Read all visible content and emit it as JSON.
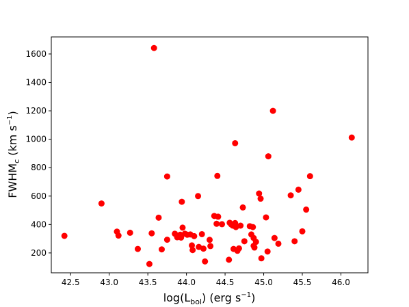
{
  "chart_data": {
    "type": "scatter",
    "title": "",
    "xlabel": {
      "main": "log(L",
      "subscript": "bol",
      "rest": ") (erg s",
      "superscript": "−1",
      "close": ")"
    },
    "ylabel": {
      "main": "FWHM",
      "subscript": "c",
      "rest": " (km s",
      "superscript": "−1",
      "close": ")"
    },
    "xlim": [
      42.25,
      46.35
    ],
    "ylim": [
      60,
      1720
    ],
    "xticks": [
      42.5,
      43.0,
      43.5,
      44.0,
      44.5,
      45.0,
      45.5,
      46.0
    ],
    "xtick_labels": [
      "42.5",
      "43.0",
      "43.5",
      "44.0",
      "44.5",
      "45.0",
      "45.5",
      "46.0"
    ],
    "yticks": [
      200,
      400,
      600,
      800,
      1000,
      1200,
      1400,
      1600
    ],
    "ytick_labels": [
      "200",
      "400",
      "600",
      "800",
      "1000",
      "1200",
      "1400",
      "1600"
    ],
    "grid": false,
    "marker_color": "#ff0000",
    "points": [
      [
        42.42,
        320
      ],
      [
        42.9,
        548
      ],
      [
        43.1,
        350
      ],
      [
        43.12,
        322
      ],
      [
        43.27,
        342
      ],
      [
        43.37,
        228
      ],
      [
        43.52,
        122
      ],
      [
        43.55,
        338
      ],
      [
        43.58,
        1642
      ],
      [
        43.64,
        448
      ],
      [
        43.68,
        225
      ],
      [
        43.75,
        738
      ],
      [
        43.75,
        293
      ],
      [
        43.85,
        335
      ],
      [
        43.88,
        310
      ],
      [
        43.92,
        328
      ],
      [
        43.93,
        308
      ],
      [
        43.94,
        560
      ],
      [
        43.95,
        378
      ],
      [
        43.98,
        335
      ],
      [
        44.01,
        328
      ],
      [
        44.05,
        330
      ],
      [
        44.07,
        253
      ],
      [
        44.08,
        220
      ],
      [
        44.1,
        318
      ],
      [
        44.15,
        600
      ],
      [
        44.16,
        242
      ],
      [
        44.2,
        332
      ],
      [
        44.22,
        230
      ],
      [
        44.24,
        140
      ],
      [
        44.3,
        292
      ],
      [
        44.31,
        248
      ],
      [
        44.36,
        460
      ],
      [
        44.39,
        405
      ],
      [
        44.4,
        742
      ],
      [
        44.41,
        455
      ],
      [
        44.46,
        402
      ],
      [
        44.55,
        152
      ],
      [
        44.56,
        412
      ],
      [
        44.58,
        400
      ],
      [
        44.6,
        392
      ],
      [
        44.61,
        228
      ],
      [
        44.63,
        410
      ],
      [
        44.63,
        972
      ],
      [
        44.64,
        382
      ],
      [
        44.66,
        215
      ],
      [
        44.68,
        232
      ],
      [
        44.7,
        392
      ],
      [
        44.73,
        520
      ],
      [
        44.75,
        282
      ],
      [
        44.82,
        388
      ],
      [
        44.84,
        330
      ],
      [
        44.86,
        382
      ],
      [
        44.87,
        250
      ],
      [
        44.87,
        305
      ],
      [
        44.88,
        238
      ],
      [
        44.9,
        278
      ],
      [
        44.94,
        618
      ],
      [
        44.96,
        582
      ],
      [
        44.97,
        162
      ],
      [
        45.03,
        450
      ],
      [
        45.05,
        210
      ],
      [
        45.06,
        880
      ],
      [
        45.12,
        1200
      ],
      [
        45.14,
        305
      ],
      [
        45.19,
        265
      ],
      [
        45.35,
        605
      ],
      [
        45.4,
        282
      ],
      [
        45.45,
        645
      ],
      [
        45.5,
        352
      ],
      [
        45.55,
        505
      ],
      [
        45.6,
        740
      ],
      [
        46.14,
        1012
      ]
    ]
  }
}
